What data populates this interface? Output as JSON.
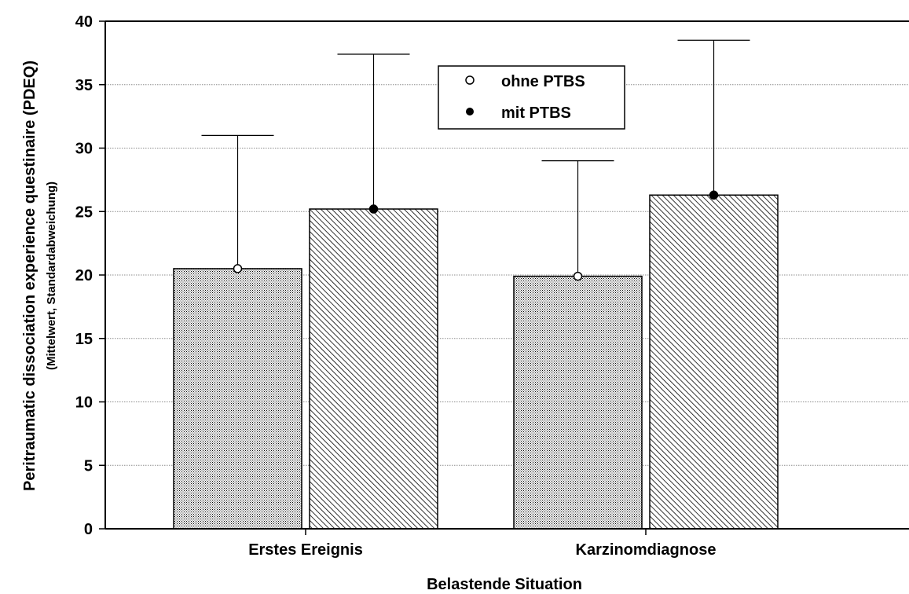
{
  "chart_data": {
    "type": "bar",
    "categories": [
      "Erstes Ereignis",
      "Karzinomdiagnose"
    ],
    "series": [
      {
        "name": "ohne PTBS",
        "marker": "open-circle",
        "values": [
          20.5,
          19.9
        ],
        "error_upper": [
          31.0,
          29.0
        ]
      },
      {
        "name": "mit PTBS",
        "marker": "filled-circle",
        "values": [
          25.2,
          26.3
        ],
        "error_upper": [
          37.4,
          38.5
        ]
      }
    ],
    "xlabel": "Belastende Situation",
    "ylabel": "Peritraumatic dissociation experience questinaire (PDEQ)",
    "ylabel_sub": "(Mittelwert, Standardabweichung)",
    "ylim": [
      0,
      40
    ],
    "yticks": [
      "0",
      "5",
      "10",
      "15",
      "20",
      "25",
      "30",
      "35",
      "40"
    ],
    "grid": true,
    "legend_position": "top-center",
    "colors": {
      "axis": "#000000",
      "grid": "#8c8c8c",
      "bar_fill": "#ffffff",
      "bar_pattern": "#000000"
    }
  }
}
